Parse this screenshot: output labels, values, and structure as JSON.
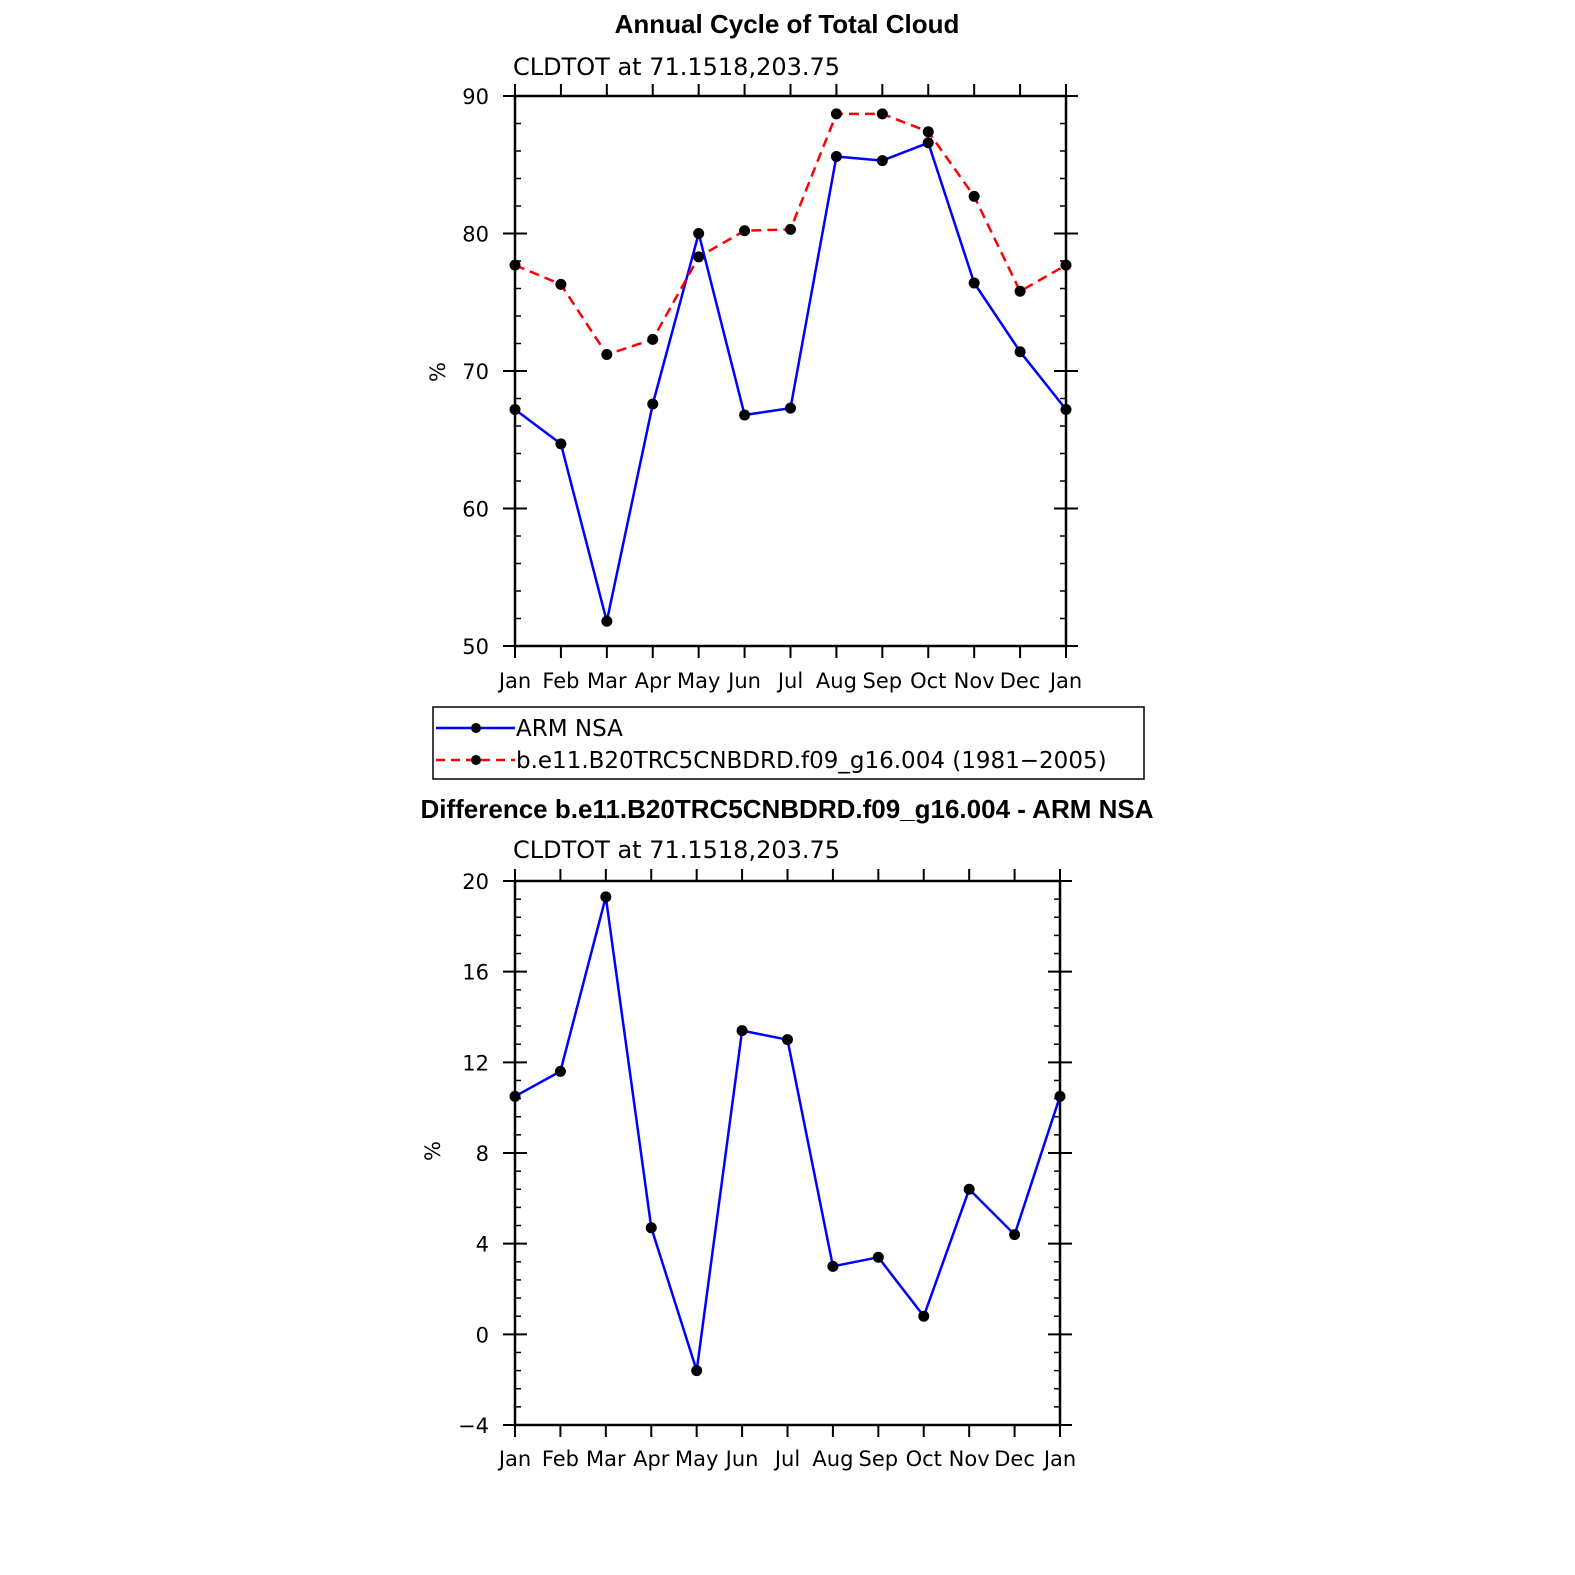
{
  "chart_data": [
    {
      "type": "line",
      "title": "Annual Cycle of Total Cloud",
      "subtitle": "CLDTOT  at  71.1518,203.75",
      "ylabel": "%",
      "categories": [
        "Jan",
        "Feb",
        "Mar",
        "Apr",
        "May",
        "Jun",
        "Jul",
        "Aug",
        "Sep",
        "Oct",
        "Nov",
        "Dec",
        "Jan"
      ],
      "ylim": [
        50,
        90
      ],
      "yticks": [
        50,
        60,
        70,
        80,
        90
      ],
      "yminor_step": 2,
      "series": [
        {
          "name": "ARM  NSA",
          "color": "#0000ff",
          "dashed": false,
          "values": [
            67.2,
            64.7,
            51.8,
            67.6,
            80.0,
            66.8,
            67.3,
            85.6,
            85.3,
            86.6,
            76.4,
            71.4,
            67.2
          ]
        },
        {
          "name": "b.e11.B20TRC5CNBDRD.f09_g16.004 (1981−2005)",
          "color": "#ff0000",
          "dashed": true,
          "values": [
            77.7,
            76.3,
            71.2,
            72.3,
            78.3,
            80.2,
            80.3,
            88.7,
            88.7,
            87.4,
            82.7,
            75.8,
            77.7
          ]
        }
      ]
    },
    {
      "type": "line",
      "title": "Difference b.e11.B20TRC5CNBDRD.f09_g16.004 - ARM NSA",
      "subtitle": "CLDTOT  at  71.1518,203.75",
      "ylabel": "%",
      "categories": [
        "Jan",
        "Feb",
        "Mar",
        "Apr",
        "May",
        "Jun",
        "Jul",
        "Aug",
        "Sep",
        "Oct",
        "Nov",
        "Dec",
        "Jan"
      ],
      "ylim": [
        -4,
        20
      ],
      "yticks": [
        -4,
        0,
        4,
        8,
        12,
        16,
        20
      ],
      "ytick_labels": [
        "−4",
        "0",
        "4",
        "8",
        "12",
        "16",
        "20"
      ],
      "yminor_step": 0.8,
      "series": [
        {
          "name": "difference",
          "color": "#0000ff",
          "dashed": false,
          "values": [
            10.5,
            11.6,
            19.3,
            4.7,
            -1.6,
            13.4,
            13.0,
            3.0,
            3.4,
            0.8,
            6.4,
            4.4,
            10.5
          ]
        }
      ]
    }
  ],
  "legend": {
    "items": [
      {
        "label": "ARM  NSA",
        "color": "#0000ff",
        "dashed": false
      },
      {
        "label": "b.e11.B20TRC5CNBDRD.f09_g16.004 (1981−2005)",
        "color": "#ff0000",
        "dashed": true
      }
    ]
  }
}
